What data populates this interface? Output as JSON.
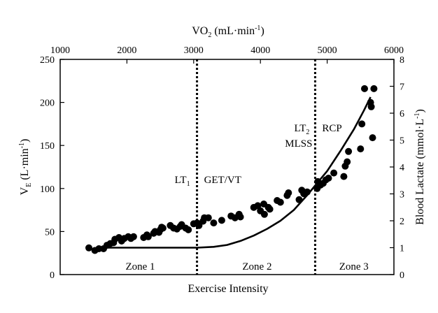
{
  "chart_data": {
    "type": "scatter",
    "top_axis": {
      "label_main": "VO",
      "label_sub": "2",
      "label_rest": " (mL·min",
      "label_sup": "-1",
      "label_close": ")",
      "ticks": [
        "1000",
        "2000",
        "3000",
        "4000",
        "5000",
        "6000"
      ],
      "tick_values": [
        1000,
        2000,
        3000,
        4000,
        5000,
        6000
      ],
      "range": [
        1000,
        6000
      ]
    },
    "left_axis": {
      "label_main": "V",
      "label_sub": "E",
      "label_rest": " (L·min",
      "label_sup": "-1",
      "label_close": ")",
      "ticks": [
        "0",
        "50",
        "100",
        "150",
        "200",
        "250"
      ],
      "tick_values": [
        0,
        50,
        100,
        150,
        200,
        250
      ],
      "range": [
        0,
        250
      ]
    },
    "right_axis": {
      "label_main": "Blood Lactate (mmol·L",
      "label_sup": "-1",
      "label_close": ")",
      "ticks": [
        "0",
        "1",
        "2",
        "3",
        "4",
        "5",
        "6",
        "7",
        "8"
      ],
      "tick_values": [
        0,
        1,
        2,
        3,
        4,
        5,
        6,
        7,
        8
      ],
      "range": [
        0,
        8
      ]
    },
    "xlabel": "Exercise Intensity",
    "thresholds": [
      {
        "vo2": 3050,
        "labels": [
          "LT",
          "1",
          "GET/VT"
        ]
      },
      {
        "vo2": 4820,
        "labels": [
          "LT",
          "2",
          "RCP",
          "MLSS"
        ]
      }
    ],
    "zones": [
      {
        "label": "Zone 1",
        "vo2": 2200
      },
      {
        "label": "Zone 2",
        "vo2": 3950
      },
      {
        "label": "Zone 3",
        "vo2": 5400
      }
    ],
    "ve_points": [
      [
        1430,
        31
      ],
      [
        1520,
        28
      ],
      [
        1580,
        30
      ],
      [
        1650,
        30
      ],
      [
        1700,
        34
      ],
      [
        1750,
        36
      ],
      [
        1800,
        37
      ],
      [
        1820,
        41
      ],
      [
        1880,
        43
      ],
      [
        1920,
        39
      ],
      [
        1960,
        42
      ],
      [
        2020,
        44
      ],
      [
        2060,
        42
      ],
      [
        2100,
        44
      ],
      [
        2250,
        43
      ],
      [
        2300,
        46
      ],
      [
        2320,
        44
      ],
      [
        2400,
        48
      ],
      [
        2420,
        50
      ],
      [
        2480,
        49
      ],
      [
        2500,
        52
      ],
      [
        2520,
        55
      ],
      [
        2540,
        54
      ],
      [
        2650,
        57
      ],
      [
        2700,
        54
      ],
      [
        2750,
        53
      ],
      [
        2800,
        56
      ],
      [
        2820,
        58
      ],
      [
        2880,
        54
      ],
      [
        2920,
        52
      ],
      [
        3000,
        59
      ],
      [
        3050,
        60
      ],
      [
        3080,
        57
      ],
      [
        3140,
        62
      ],
      [
        3160,
        66
      ],
      [
        3220,
        66
      ],
      [
        3300,
        60
      ],
      [
        3420,
        63
      ],
      [
        3560,
        68
      ],
      [
        3620,
        66
      ],
      [
        3680,
        70
      ],
      [
        3700,
        67
      ],
      [
        3900,
        78
      ],
      [
        3960,
        80
      ],
      [
        4000,
        74
      ],
      [
        4050,
        82
      ],
      [
        4060,
        70
      ],
      [
        4120,
        78
      ],
      [
        4140,
        76
      ],
      [
        4250,
        86
      ],
      [
        4300,
        84
      ],
      [
        4400,
        92
      ],
      [
        4420,
        95
      ],
      [
        4580,
        87
      ],
      [
        4620,
        98
      ],
      [
        4650,
        94
      ],
      [
        4700,
        96
      ],
      [
        4850,
        100
      ],
      [
        4860,
        108
      ],
      [
        4900,
        104
      ],
      [
        4940,
        106
      ],
      [
        4980,
        110
      ],
      [
        5020,
        112
      ],
      [
        5100,
        118
      ],
      [
        5250,
        114
      ],
      [
        5270,
        126
      ],
      [
        5300,
        131
      ],
      [
        5320,
        143
      ],
      [
        5500,
        146
      ],
      [
        5520,
        175
      ],
      [
        5560,
        216
      ],
      [
        5650,
        200
      ],
      [
        5660,
        195
      ],
      [
        5680,
        159
      ],
      [
        5700,
        216
      ]
    ],
    "lactate_curve": [
      [
        1580,
        1.0
      ],
      [
        2000,
        1.0
      ],
      [
        2500,
        1.0
      ],
      [
        3050,
        1.0
      ],
      [
        3300,
        1.03
      ],
      [
        3500,
        1.1
      ],
      [
        3700,
        1.25
      ],
      [
        3900,
        1.45
      ],
      [
        4100,
        1.7
      ],
      [
        4300,
        2.0
      ],
      [
        4500,
        2.4
      ],
      [
        4700,
        2.95
      ],
      [
        4850,
        3.4
      ],
      [
        5000,
        3.85
      ],
      [
        5200,
        4.6
      ],
      [
        5400,
        5.4
      ],
      [
        5550,
        6.1
      ],
      [
        5650,
        6.6
      ]
    ]
  }
}
